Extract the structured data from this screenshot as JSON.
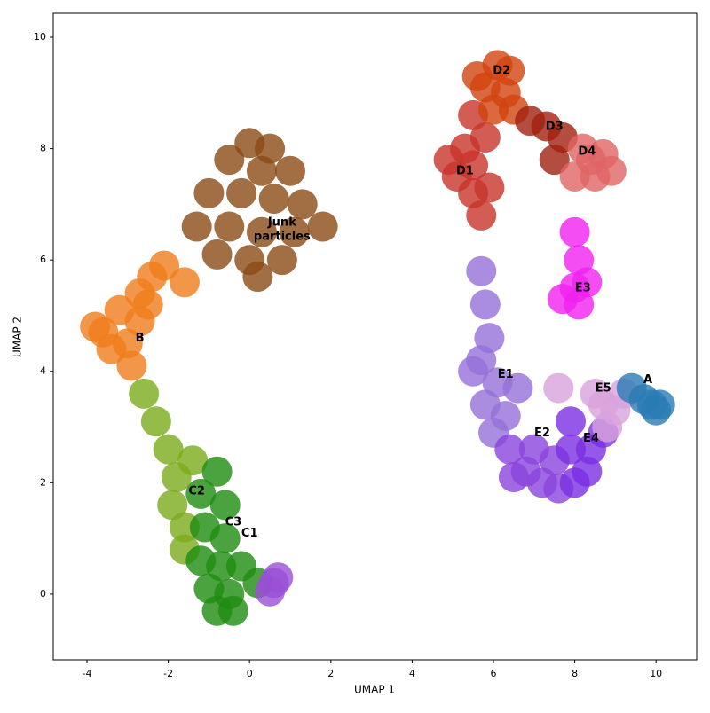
{
  "chart_data": {
    "type": "scatter",
    "xlabel": "UMAP 1",
    "ylabel": "UMAP 2",
    "xlim": [
      -4.83,
      11.0
    ],
    "ylim": [
      -1.18,
      10.43
    ],
    "xticks": [
      -4,
      -2,
      0,
      2,
      4,
      6,
      8,
      10
    ],
    "yticks": [
      0,
      2,
      4,
      6,
      8,
      10
    ],
    "series": [
      {
        "name": "Junk\nparticles",
        "color": "#8b4a14",
        "label_at": [
          0.8,
          6.55
        ],
        "x": [
          0,
          0.5,
          -0.5,
          0.3,
          1.0,
          -1,
          -0.2,
          0.6,
          1.3,
          -1.3,
          -0.5,
          0.3,
          1.1,
          -0.8,
          0,
          0.8,
          0.2,
          1.8
        ],
        "y": [
          8.1,
          8.0,
          7.8,
          7.6,
          7.6,
          7.2,
          7.2,
          7.1,
          7.0,
          6.6,
          6.6,
          6.5,
          6.5,
          6.1,
          6.0,
          6.0,
          5.7,
          6.6
        ]
      },
      {
        "name": "B",
        "color": "#ef7d1c",
        "label_at": [
          -2.7,
          4.6
        ],
        "x": [
          -3.6,
          -3.2,
          -2.7,
          -2.4,
          -3.0,
          -2.7,
          -3.4,
          -2.9,
          -3.8,
          -2.5,
          -2.1,
          -1.6
        ],
        "y": [
          4.7,
          5.1,
          5.4,
          5.7,
          4.5,
          4.9,
          4.4,
          4.1,
          4.8,
          5.2,
          5.9,
          5.6
        ]
      },
      {
        "name": "C2",
        "color": "#7aab1a",
        "label_at": [
          -1.3,
          1.85
        ],
        "x": [
          -2.6,
          -2.3,
          -2.0,
          -1.8,
          -1.9,
          -1.6,
          -1.4,
          -1.6
        ],
        "y": [
          3.6,
          3.1,
          2.6,
          2.1,
          1.6,
          1.2,
          2.4,
          0.8
        ]
      },
      {
        "name": "C3",
        "color": "#1e8c10",
        "label_at": [
          -0.4,
          1.3
        ],
        "x": [
          -1.2,
          -0.8,
          -0.6,
          -1.1,
          -0.6,
          -1.2,
          -0.7,
          -1.0,
          -0.5,
          -0.8,
          -0.4,
          -0.2,
          0.2
        ],
        "y": [
          1.8,
          2.2,
          1.6,
          1.2,
          1.0,
          0.6,
          0.5,
          0.1,
          0.0,
          -0.3,
          -0.3,
          0.5,
          0.2
        ]
      },
      {
        "name": "C1",
        "color": "#9a4fd6",
        "label_at": [
          0.0,
          1.1
        ],
        "x": [
          0.6,
          0.5,
          0.7
        ],
        "y": [
          0.2,
          0.05,
          0.3
        ]
      },
      {
        "name": "D1",
        "color": "#c8342a",
        "label_at": [
          5.3,
          7.6
        ],
        "x": [
          5.5,
          5.5,
          5.1,
          5.9,
          5.7,
          5.3,
          4.9,
          5.8,
          5.5
        ],
        "y": [
          7.2,
          7.7,
          7.5,
          7.3,
          6.8,
          8.0,
          7.8,
          8.2,
          8.6
        ]
      },
      {
        "name": "D2",
        "color": "#d2440f",
        "label_at": [
          6.2,
          9.4
        ],
        "x": [
          6.1,
          5.8,
          6.3,
          6.5,
          6.0,
          6.4,
          5.6
        ],
        "y": [
          9.5,
          9.1,
          9.0,
          8.7,
          8.7,
          9.4,
          9.3
        ]
      },
      {
        "name": "D3",
        "color": "#a0200f",
        "label_at": [
          7.5,
          8.4
        ],
        "x": [
          6.9,
          7.3,
          7.7,
          7.5
        ],
        "y": [
          8.5,
          8.4,
          8.2,
          7.8
        ]
      },
      {
        "name": "D4",
        "color": "#e06464",
        "label_at": [
          8.3,
          7.95
        ],
        "x": [
          8.4,
          8.7,
          8.5,
          8.9,
          8.2,
          8.0
        ],
        "y": [
          7.8,
          7.9,
          7.5,
          7.6,
          8.0,
          7.5
        ]
      },
      {
        "name": "E3",
        "color": "#f020f0",
        "label_at": [
          8.2,
          5.5
        ],
        "x": [
          8.0,
          8.3,
          7.7,
          8.1,
          8.0,
          8.1
        ],
        "y": [
          5.5,
          5.6,
          5.3,
          5.2,
          6.5,
          6.0
        ]
      },
      {
        "name": "E1",
        "color": "#9570d8",
        "label_at": [
          6.3,
          3.95
        ],
        "x": [
          5.7,
          5.9,
          5.5,
          6.1,
          5.8,
          6.3,
          6.0,
          5.8,
          5.7,
          6.6
        ],
        "y": [
          4.2,
          4.6,
          4.0,
          3.8,
          3.4,
          3.2,
          2.9,
          5.2,
          5.8,
          3.7
        ]
      },
      {
        "name": "E2",
        "color": "#8a44dc",
        "label_at": [
          7.2,
          2.9
        ],
        "x": [
          6.4,
          6.8,
          7.2,
          6.5,
          7.0,
          7.5,
          7.6
        ],
        "y": [
          2.6,
          2.2,
          2.0,
          2.1,
          2.6,
          2.4,
          1.9
        ]
      },
      {
        "name": "E4",
        "color": "#7b2ee2",
        "label_at": [
          8.4,
          2.8
        ],
        "x": [
          8.0,
          8.3,
          7.9,
          8.4,
          8.7,
          7.9
        ],
        "y": [
          2.0,
          2.2,
          2.6,
          2.6,
          2.9,
          3.1
        ]
      },
      {
        "name": "E5",
        "color": "#d9a2dc",
        "label_at": [
          8.7,
          3.7
        ],
        "x": [
          8.7,
          9.0,
          8.5,
          9.2,
          8.8,
          7.6
        ],
        "y": [
          3.4,
          3.3,
          3.6,
          3.6,
          3.0,
          3.7
        ]
      },
      {
        "name": "A",
        "color": "#2a7ab4",
        "label_at": [
          9.8,
          3.85
        ],
        "x": [
          9.9,
          10.1,
          9.7,
          9.4,
          10.0
        ],
        "y": [
          3.4,
          3.4,
          3.5,
          3.7,
          3.3
        ]
      }
    ]
  }
}
